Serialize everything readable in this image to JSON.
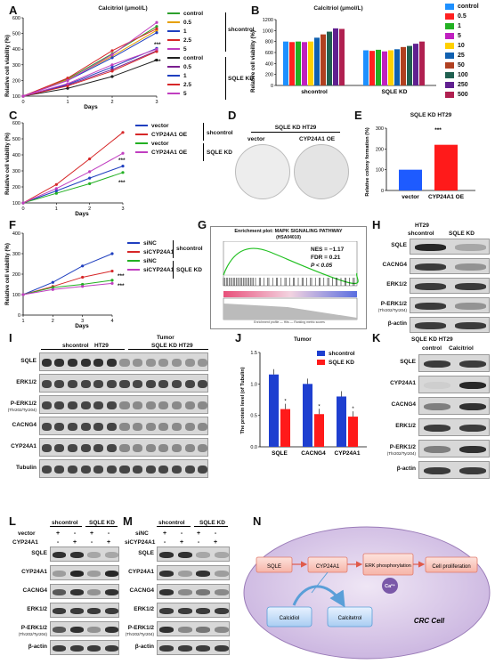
{
  "panels": {
    "A": "A",
    "B": "B",
    "C": "C",
    "D": "D",
    "E": "E",
    "F": "F",
    "G": "G",
    "H": "H",
    "I": "I",
    "J": "J",
    "K": "K",
    "L": "L",
    "M": "M",
    "N": "N"
  },
  "common": {
    "days": "Days",
    "viability": "Relative cell viability (%)",
    "shcontrol": "shcontrol",
    "sqlekd": "SQLE KD",
    "betaactin": "β-actin",
    "thr": "(Thr202/Tyr204)"
  },
  "panelA": {
    "title": "Calcitriol (μmol/L)",
    "groups": [
      "shcontrol",
      "SQLE KD"
    ],
    "legend": [
      "control",
      "0.5",
      "1",
      "2.5",
      "5",
      "control",
      "0.5",
      "1",
      "2.5",
      "5"
    ],
    "sig": "***",
    "colors": [
      "#2ca02c",
      "#e6a000",
      "#1f3fbf",
      "#d62728",
      "#c03ec0",
      "#222222",
      "#7a1f8f",
      "#1f3fbf",
      "#d62728",
      "#c03ec0"
    ]
  },
  "chart_data": [
    {
      "type": "line",
      "title": "Calcitriol (μmol/L)",
      "xlabel": "Days",
      "ylabel": "Relative cell viability (%)",
      "x": [
        0,
        1,
        2,
        3
      ],
      "ylim": [
        100,
        600
      ],
      "series": [
        {
          "name": "control",
          "values": [
            100,
            210,
            370,
            545
          ]
        },
        {
          "name": "0.5",
          "values": [
            100,
            205,
            355,
            520
          ]
        },
        {
          "name": "1",
          "values": [
            100,
            200,
            345,
            505
          ]
        },
        {
          "name": "2.5",
          "values": [
            100,
            215,
            390,
            530
          ]
        },
        {
          "name": "5",
          "values": [
            100,
            200,
            365,
            570
          ]
        },
        {
          "name": "control",
          "values": [
            100,
            150,
            225,
            330
          ]
        },
        {
          "name": "0.5",
          "values": [
            100,
            170,
            270,
            390
          ]
        },
        {
          "name": "1",
          "values": [
            100,
            175,
            285,
            405
          ]
        },
        {
          "name": "2.5",
          "values": [
            100,
            165,
            260,
            385
          ]
        },
        {
          "name": "5",
          "values": [
            100,
            180,
            300,
            400
          ]
        }
      ]
    },
    {
      "type": "bar",
      "title": "Calcitriol (μmol/L)",
      "ylabel": "Relative cell viability (%)",
      "categories": [
        "shcontrol",
        "SQLE KD"
      ],
      "ylim": [
        0,
        1200
      ],
      "series": [
        {
          "name": "control",
          "values": [
            800,
            640
          ]
        },
        {
          "name": "0.5",
          "values": [
            790,
            630
          ]
        },
        {
          "name": "1",
          "values": [
            800,
            650
          ]
        },
        {
          "name": "5",
          "values": [
            790,
            620
          ]
        },
        {
          "name": "10",
          "values": [
            800,
            640
          ]
        },
        {
          "name": "25",
          "values": [
            870,
            660
          ]
        },
        {
          "name": "50",
          "values": [
            930,
            700
          ]
        },
        {
          "name": "100",
          "values": [
            980,
            720
          ]
        },
        {
          "name": "250",
          "values": [
            1040,
            760
          ]
        },
        {
          "name": "500",
          "values": [
            1030,
            800
          ]
        }
      ]
    },
    {
      "type": "line",
      "xlabel": "Days",
      "ylabel": "Relative cell viability (%)",
      "x": [
        0,
        1,
        2,
        3
      ],
      "ylim": [
        100,
        600
      ],
      "series": [
        {
          "name": "vector",
          "values": [
            100,
            175,
            255,
            330
          ]
        },
        {
          "name": "CYP24A1 OE",
          "values": [
            100,
            215,
            375,
            540
          ]
        },
        {
          "name": "vector",
          "values": [
            100,
            160,
            220,
            290
          ]
        },
        {
          "name": "CYP24A1 OE",
          "values": [
            100,
            190,
            295,
            410
          ]
        }
      ]
    },
    {
      "type": "bar",
      "title": "SQLE KD HT29",
      "ylabel": "Relative colony formation (%)",
      "categories": [
        "vector",
        "CYP24A1 OE"
      ],
      "values": [
        100,
        220
      ],
      "ylim": [
        0,
        300
      ]
    },
    {
      "type": "line",
      "xlabel": "Days",
      "ylabel": "Relative cell viability (%)",
      "x": [
        1,
        2,
        3,
        4
      ],
      "ylim": [
        0,
        400
      ],
      "series": [
        {
          "name": "siNC",
          "values": [
            100,
            160,
            240,
            300
          ]
        },
        {
          "name": "siCYP24A1",
          "values": [
            100,
            140,
            185,
            215
          ]
        },
        {
          "name": "siNC",
          "values": [
            100,
            135,
            150,
            170
          ]
        },
        {
          "name": "siCYP24A1",
          "values": [
            100,
            125,
            140,
            155
          ]
        }
      ]
    },
    {
      "type": "bar",
      "title": "Tumor",
      "ylabel": "The protein level (of Tubulin)",
      "categories": [
        "SQLE",
        "CACNG4",
        "CYP24A1"
      ],
      "ylim": [
        0,
        1.5
      ],
      "series": [
        {
          "name": "shcontrol",
          "values": [
            1.15,
            1.0,
            0.8
          ]
        },
        {
          "name": "SQLE KD",
          "values": [
            0.6,
            0.52,
            0.48
          ]
        }
      ]
    }
  ],
  "panelB": {
    "title": "Calcitriol (μmol/L)",
    "groups": [
      "shcontrol",
      "SQLE KD"
    ],
    "legend": [
      "control",
      "0.5",
      "1",
      "5",
      "10",
      "25",
      "50",
      "100",
      "250",
      "500"
    ],
    "colors": [
      "#1e90ff",
      "#ff2020",
      "#22b022",
      "#c020c0",
      "#ffd000",
      "#1060b0",
      "#b04020",
      "#206050",
      "#602090",
      "#b02050"
    ]
  },
  "panelC": {
    "legend": [
      "vector",
      "CYP24A1 OE",
      "vector",
      "CYP24A1 OE"
    ]
  },
  "panelD": {
    "title": "SQLE KD HT29",
    "labels": [
      "vector",
      "CYP24A1 OE"
    ]
  },
  "panelE": {
    "title": "SQLE KD HT29",
    "ylabel": "Relative colony formation (%)",
    "cats": [
      "vector",
      "CYP24A1 OE"
    ],
    "sig": "***"
  },
  "panelF": {
    "legend": [
      "siNC",
      "siCYP24A1",
      "siNC",
      "siCYP24A1"
    ]
  },
  "panelG": {
    "title": "Enrichment plot: MAPK SIGNALING PATHWAY",
    "subtitle": "(HSA04010)",
    "nes": "NES = −1.17",
    "fdr": "FDR = 0.21",
    "p": "P < 0.05",
    "footer": "Enrichment profile — Hits — Ranking metric scores"
  },
  "panelH": {
    "title": "HT29",
    "cols": [
      "shcontrol",
      "SQLE KD"
    ],
    "rows": [
      "SQLE",
      "CACNG4",
      "ERK1/2",
      "P-ERK1/2",
      "β-actin"
    ]
  },
  "panelI": {
    "title": "Tumor",
    "cols": [
      "shcontrol",
      "HT29",
      "SQLE KD HT29"
    ],
    "rows": [
      "SQLE",
      "ERK1/2",
      "P-ERK1/2",
      "CACNG4",
      "CYP24A1",
      "Tubulin"
    ]
  },
  "panelJ": {
    "title": "Tumor",
    "ylabel": "The protein level (of Tubulin)",
    "legend": [
      "shcontrol",
      "SQLE KD"
    ],
    "cats": [
      "SQLE",
      "CACNG4",
      "CYP24A1"
    ],
    "sig": "*"
  },
  "panelK": {
    "title": "SQLE KD HT29",
    "cols": [
      "control",
      "Calcitriol"
    ],
    "rows": [
      "SQLE",
      "CYP24A1",
      "CACNG4",
      "ERK1/2",
      "P-ERK1/2",
      "β-actin"
    ]
  },
  "panelL": {
    "cols": [
      "shcontrol",
      "SQLE KD"
    ],
    "conds": [
      "vector",
      "CYP24A1"
    ],
    "signs": [
      "+",
      "-",
      "+",
      "-",
      "-",
      "+",
      "-",
      "+"
    ],
    "rows": [
      "SQLE",
      "CYP24A1",
      "CACNG4",
      "ERK1/2",
      "P-ERK1/2",
      "β-actin"
    ]
  },
  "panelM": {
    "cols": [
      "shcontrol",
      "SQLE KD"
    ],
    "conds": [
      "siNC",
      "siCYP24A1"
    ],
    "signs": [
      "+",
      "-",
      "+",
      "-",
      "-",
      "+",
      "-",
      "+"
    ],
    "rows": [
      "SQLE",
      "CYP24A1",
      "CACNG4",
      "ERK1/2",
      "P-ERK1/2",
      "β-actin"
    ]
  },
  "panelN": {
    "nodes": [
      "SQLE",
      "CYP24A1",
      "ERK phosphorylation",
      "Cell proliferation",
      "Calcidiol",
      "Calcitetrol"
    ],
    "ion": "Ca²⁺",
    "cell": "CRC Cell"
  }
}
